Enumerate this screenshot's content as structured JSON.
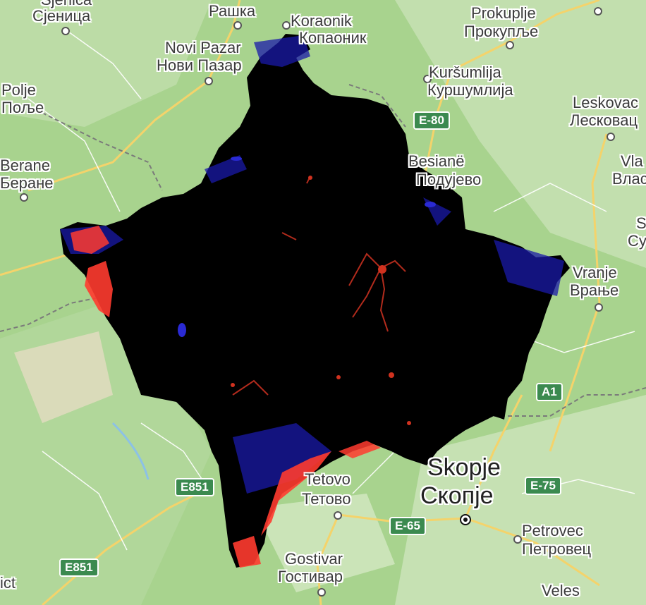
{
  "map": {
    "overlay_colors": {
      "background": "#000000",
      "low": "#1a1aa8",
      "high": "#ff3b2f"
    },
    "places": {
      "sjenica_lat": "Sjenica",
      "sjenica_cyr": "Сјеница",
      "raska_cyr": "Рашка",
      "kopaonik_lat": "Koraonik",
      "kopaonik_cyr": "Копаоник",
      "prokuplje_lat": "Prokuplje",
      "prokuplje_cyr": "Прокупље",
      "novipazar_lat": "Novi Pazar",
      "novipazar_cyr": "Нови Пазар",
      "kursumlija_lat": "Kuršumlija",
      "kursumlija_cyr": "Куршумлија",
      "polje_lat": "Polje",
      "polje_cyr": "Поље",
      "leskovac_lat": "Leskovac",
      "leskovac_cyr": "Лесковац",
      "berane_lat": "Berane",
      "berane_cyr": "Беране",
      "besiane_lat": "Besianë",
      "besiane_cyr": "Подујево",
      "vla_lat": "Vla",
      "vla_cyr": "Влас",
      "su_lat": "S",
      "su_cyr": "Су",
      "vranje_lat": "Vranje",
      "vranje_cyr": "Врање",
      "skopje_lat": "Skopje",
      "skopje_cyr": "Скопје",
      "tetovo_lat": "Tetovo",
      "tetovo_cyr": "Тетово",
      "petrovec_lat": "Petrovec",
      "petrovec_cyr": "Петровец",
      "gostivar_lat": "Gostivar",
      "gostivar_cyr": "Гостивар",
      "veles_lat": "Veles",
      "ict": "ict"
    },
    "road_shields": {
      "e80": "E-80",
      "a1": "A1",
      "e851_upper": "E851",
      "e851_lower": "E851",
      "e75": "E-75",
      "e65": "E-65"
    }
  }
}
